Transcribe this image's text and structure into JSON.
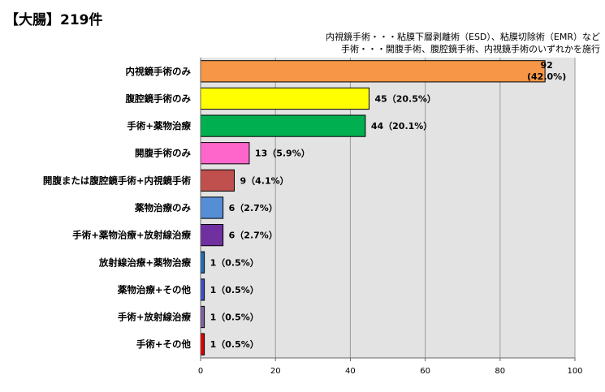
{
  "header": {
    "title": "【大腸】219件",
    "note_line1": "内視鏡手術・・・粘膜下層剥離術（ESD）、粘膜切除術（EMR）など",
    "note_line2": "手術・・・開腹手術、腹腔鏡手術、内視鏡手術のいずれかを施行"
  },
  "chart_data": {
    "type": "bar",
    "orientation": "horizontal",
    "categories": [
      "内視鏡手術のみ",
      "腹腔鏡手術のみ",
      "手術+薬物治療",
      "開腹手術のみ",
      "開腹または腹腔鏡手術+内視鏡手術",
      "薬物治療のみ",
      "手術+薬物治療+放射線治療",
      "放射線治療+薬物治療",
      "薬物治療+その他",
      "手術+放射線治療",
      "手術+その他"
    ],
    "values": [
      92,
      45,
      44,
      13,
      9,
      6,
      6,
      1,
      1,
      1,
      1
    ],
    "value_labels": [
      "92\n(42.0%)",
      "45（20.5%）",
      "44（20.1%）",
      "13（5.9%）",
      "9（4.1%）",
      "6（2.7%）",
      "6（2.7%）",
      "1（0.5%）",
      "1（0.5%）",
      "1（0.5%）",
      "1（0.5%）"
    ],
    "colors": [
      "#F79646",
      "#FFFF00",
      "#00B050",
      "#FF66CC",
      "#C0504D",
      "#558ED5",
      "#7030A0",
      "#1F6FB5",
      "#3D50C8",
      "#8064A2",
      "#E00000"
    ],
    "xlim": [
      0,
      100
    ],
    "xticks": [
      0,
      20,
      40,
      60,
      80,
      100
    ],
    "grid": true,
    "plot_background": "#E3E3E3"
  }
}
